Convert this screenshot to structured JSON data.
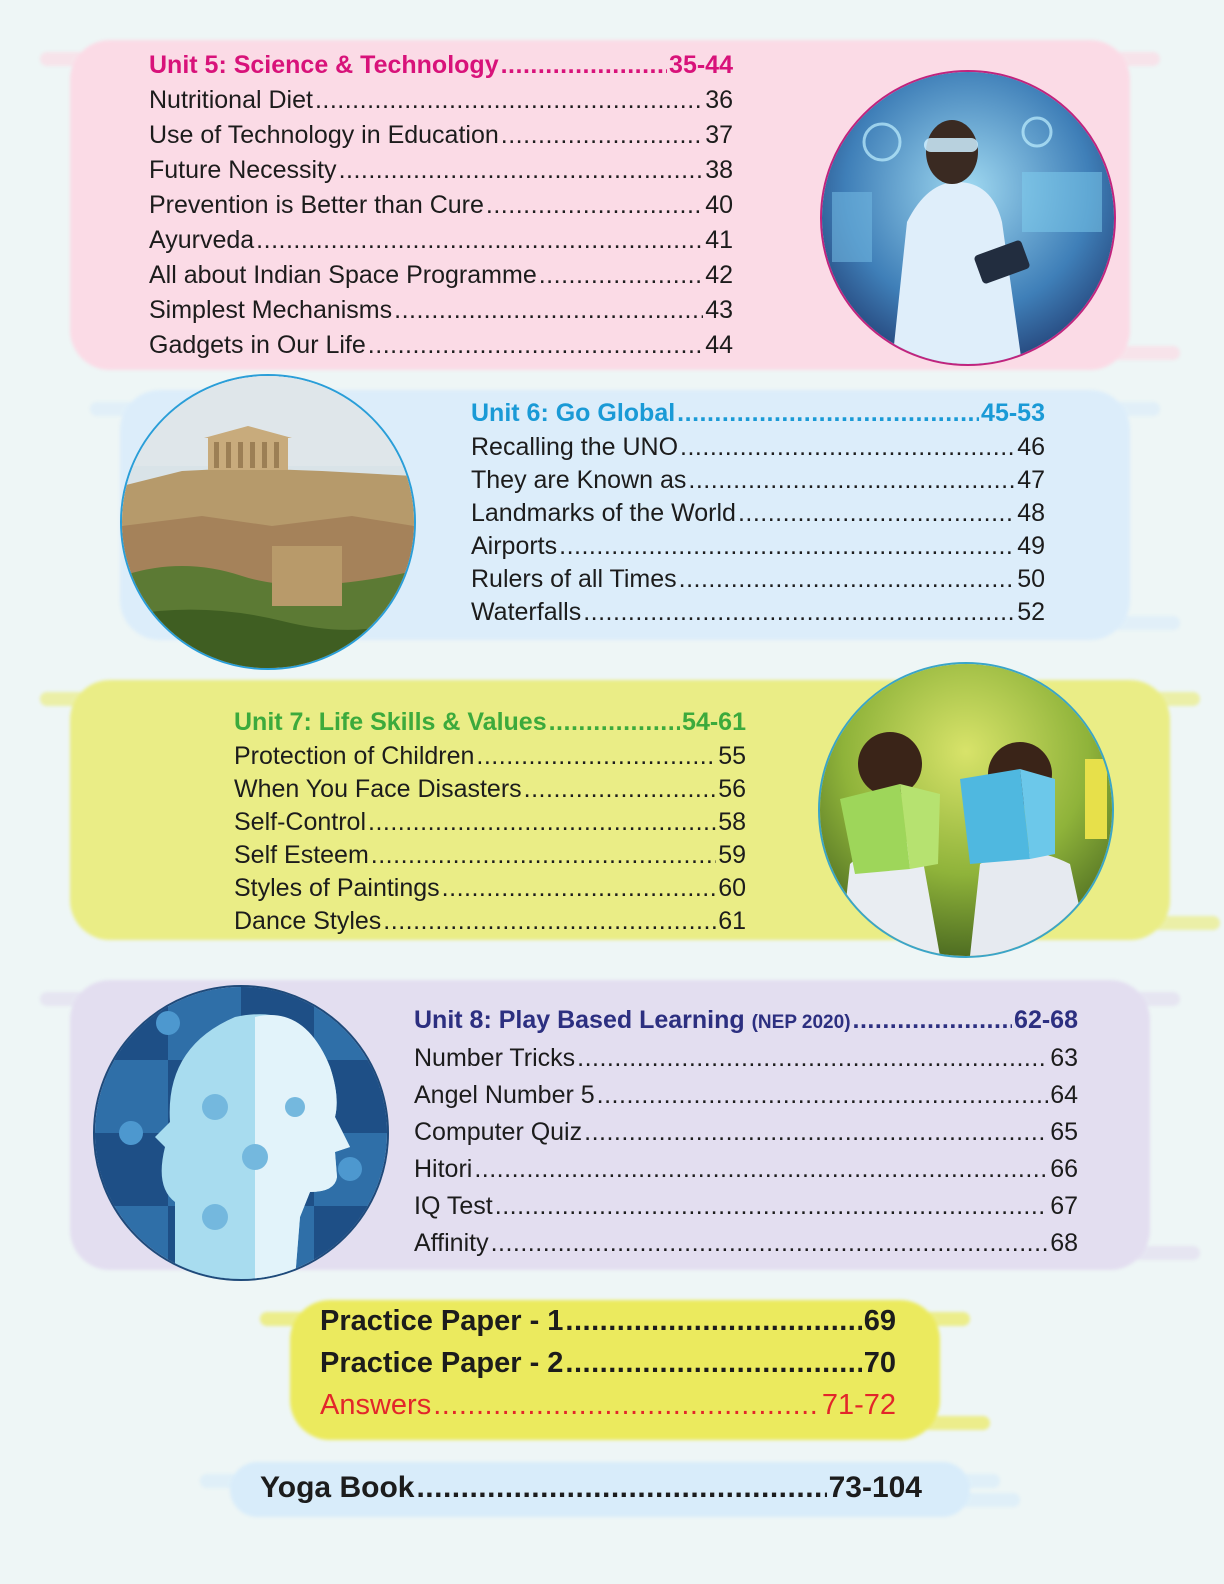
{
  "colors": {
    "unit5": "#d8127a",
    "unit6": "#1a9ad6",
    "unit7": "#3caa3c",
    "unit8": "#2c2f80",
    "answers": "#e2262a"
  },
  "unit5": {
    "title": "Unit 5: Science & Technology",
    "pages": "35-44",
    "items": [
      {
        "label": "Nutritional Diet",
        "page": "36"
      },
      {
        "label": "Use of Technology in Education",
        "page": "37"
      },
      {
        "label": "Future Necessity",
        "page": "38"
      },
      {
        "label": "Prevention is Better than Cure",
        "page": "40"
      },
      {
        "label": "Ayurveda",
        "page": "41"
      },
      {
        "label": "All about Indian Space Programme",
        "page": "42"
      },
      {
        "label": "Simplest Mechanisms",
        "page": "43"
      },
      {
        "label": "Gadgets in Our Life",
        "page": "44"
      }
    ]
  },
  "unit6": {
    "title": "Unit 6: Go Global",
    "pages": "45-53",
    "items": [
      {
        "label": "Recalling the UNO",
        "page": "46"
      },
      {
        "label": "They are Known as",
        "page": "47"
      },
      {
        "label": "Landmarks of the World",
        "page": "48"
      },
      {
        "label": "Airports",
        "page": "49"
      },
      {
        "label": "Rulers of all Times",
        "page": "50"
      },
      {
        "label": "Waterfalls",
        "page": "52"
      }
    ]
  },
  "unit7": {
    "title": "Unit 7: Life Skills & Values",
    "pages": "54-61",
    "items": [
      {
        "label": "Protection of Children",
        "page": "55"
      },
      {
        "label": "When You Face Disasters",
        "page": "56"
      },
      {
        "label": "Self-Control",
        "page": "58"
      },
      {
        "label": "Self Esteem",
        "page": "59"
      },
      {
        "label": "Styles of Paintings",
        "page": "60"
      },
      {
        "label": "Dance Styles",
        "page": "61"
      }
    ]
  },
  "unit8": {
    "title": "Unit 8: Play Based Learning",
    "title_suffix": "(NEP 2020)",
    "pages": "62-68",
    "items": [
      {
        "label": "Number Tricks",
        "page": "63"
      },
      {
        "label": "Angel Number 5",
        "page": "64"
      },
      {
        "label": "Computer Quiz",
        "page": "65"
      },
      {
        "label": "Hitori",
        "page": "66"
      },
      {
        "label": "IQ Test",
        "page": "67"
      },
      {
        "label": "Affinity",
        "page": "68"
      }
    ]
  },
  "extras": {
    "practice1": {
      "label": "Practice Paper - 1",
      "page": "69"
    },
    "practice2": {
      "label": "Practice Paper - 2",
      "page": "70"
    },
    "answers": {
      "label": "Answers",
      "page": "71-72"
    },
    "yoga": {
      "label": "Yoga Book",
      "page": "73-104"
    }
  },
  "icons": {
    "unit5_image": "scientist-photo",
    "unit6_image": "acropolis-photo",
    "unit7_image": "children-reading-photo",
    "unit8_image": "puzzle-head-graphic"
  }
}
